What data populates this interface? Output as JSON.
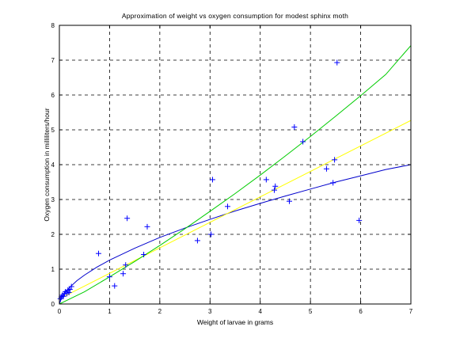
{
  "chart_data": {
    "type": "scatter",
    "title": "Approximation of weight vs oxygen consumption for modest sphinx moth",
    "xlabel": "Weight of larvae in grams",
    "ylabel": "Oxygen consumption in milliliters/hour",
    "xlim": [
      0,
      7
    ],
    "ylim": [
      0,
      8
    ],
    "xticks": [
      0,
      1,
      2,
      3,
      4,
      5,
      6,
      7
    ],
    "yticks": [
      0,
      1,
      2,
      3,
      4,
      5,
      6,
      7,
      8
    ],
    "grid": true,
    "colors": {
      "points": "#0000ff",
      "power_fit": "#0000cc",
      "linear_fit": "#ffff00",
      "quadratic_fit": "#00cc00",
      "grid": "#000000"
    },
    "series": [
      {
        "kind": "points",
        "marker": "+",
        "x": [
          0.02,
          0.04,
          0.06,
          0.08,
          0.1,
          0.12,
          0.15,
          0.17,
          0.19,
          0.21,
          0.24,
          0.78,
          1.0,
          1.1,
          1.27,
          1.32,
          1.35,
          1.68,
          1.75,
          2.75,
          3.02,
          3.05,
          3.35,
          4.12,
          4.28,
          4.3,
          4.58,
          4.68,
          4.85,
          5.32,
          5.45,
          5.48,
          5.53,
          5.97
        ],
        "y": [
          0.15,
          0.2,
          0.25,
          0.22,
          0.3,
          0.35,
          0.3,
          0.4,
          0.33,
          0.42,
          0.5,
          1.45,
          0.78,
          0.52,
          0.87,
          1.12,
          2.46,
          1.42,
          2.22,
          1.82,
          2.0,
          3.57,
          2.8,
          3.57,
          3.27,
          3.38,
          2.95,
          5.08,
          4.66,
          3.88,
          3.48,
          4.14,
          6.93,
          2.4
        ]
      },
      {
        "kind": "curve",
        "x": [
          0,
          0.05,
          0.1,
          0.2,
          0.35,
          0.5,
          0.75,
          1.0,
          1.5,
          2.0,
          2.5,
          3.0,
          3.5,
          4.0,
          4.5,
          5.0,
          5.5,
          6.0,
          6.5,
          7.0
        ],
        "y": [
          0,
          0.2,
          0.31,
          0.47,
          0.67,
          0.83,
          1.06,
          1.26,
          1.6,
          1.91,
          2.18,
          2.43,
          2.67,
          2.89,
          3.1,
          3.3,
          3.5,
          3.68,
          3.86,
          4.0
        ]
      },
      {
        "kind": "curve",
        "x": [
          0,
          7
        ],
        "y": [
          0.15,
          5.27
        ]
      },
      {
        "kind": "curve",
        "x": [
          0,
          0.5,
          1.0,
          1.5,
          2.0,
          2.5,
          3.0,
          3.5,
          4.0,
          4.5,
          5.0,
          5.5,
          6.0,
          6.5,
          7.0
        ],
        "y": [
          0.0,
          0.35,
          0.78,
          1.22,
          1.68,
          2.16,
          2.66,
          3.17,
          3.7,
          4.25,
          4.81,
          5.39,
          5.98,
          6.59,
          7.42
        ]
      }
    ]
  }
}
